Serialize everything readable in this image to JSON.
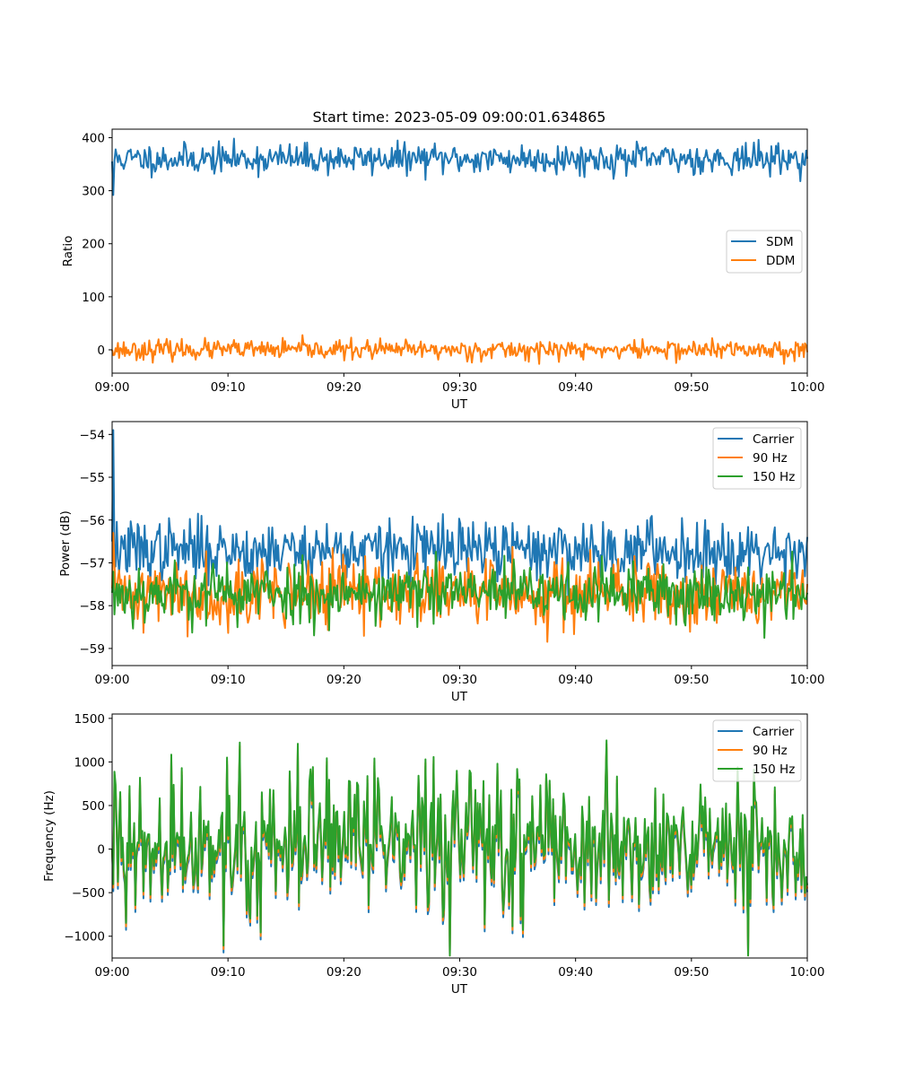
{
  "chart_data": [
    {
      "type": "line",
      "title": "Start time: 2023-05-09 09:00:01.634865",
      "xlabel": "UT",
      "ylabel": "Ratio",
      "x_range": [
        "09:00",
        "10:00"
      ],
      "xticks": [
        "09:00",
        "09:10",
        "09:20",
        "09:30",
        "09:40",
        "09:50",
        "10:00"
      ],
      "ylim": [
        -44,
        416
      ],
      "yticks": [
        0,
        100,
        200,
        300,
        400
      ],
      "legend_position": "center-right",
      "series": [
        {
          "name": "SDM",
          "color": "#1f77b4",
          "mean": 360,
          "noise": 14,
          "start_values": [
            355,
            292
          ],
          "seed": 11
        },
        {
          "name": "DDM",
          "color": "#ff7f0e",
          "mean": 0,
          "noise": 9,
          "start_values": [
            0
          ],
          "seed": 23
        }
      ]
    },
    {
      "type": "line",
      "title": "",
      "xlabel": "UT",
      "ylabel": "Power (dB)",
      "x_range": [
        "09:00",
        "10:00"
      ],
      "xticks": [
        "09:00",
        "09:10",
        "09:20",
        "09:30",
        "09:40",
        "09:50",
        "10:00"
      ],
      "ylim": [
        -59.4,
        -53.7
      ],
      "yticks": [
        -59,
        -58,
        -57,
        -56,
        -55,
        -54
      ],
      "legend_position": "upper-right",
      "series": [
        {
          "name": "Carrier",
          "color": "#1f77b4",
          "mean": -56.7,
          "noise": 0.35,
          "start_values": [
            -56.5,
            -53.9,
            -56.8
          ],
          "seed": 37
        },
        {
          "name": "90 Hz",
          "color": "#ff7f0e",
          "mean": -57.7,
          "noise": 0.4,
          "start_values": [
            -57.6,
            -56.3
          ],
          "seed": 41
        },
        {
          "name": "150 Hz",
          "color": "#2ca02c",
          "mean": -57.7,
          "noise": 0.35,
          "start_values": [
            -57.7
          ],
          "seed": 53
        }
      ]
    },
    {
      "type": "line",
      "title": "",
      "xlabel": "UT",
      "ylabel": "Frequency (Hz)",
      "x_range": [
        "09:00",
        "10:00"
      ],
      "xticks": [
        "09:00",
        "09:10",
        "09:20",
        "09:30",
        "09:40",
        "09:50",
        "10:00"
      ],
      "ylim": [
        -1250,
        1550
      ],
      "yticks": [
        -1000,
        -500,
        0,
        500,
        1000,
        1500
      ],
      "legend_position": "upper-right",
      "series": [
        {
          "name": "Carrier",
          "color": "#1f77b4",
          "mean": -40,
          "noise": 380,
          "start_values": [
            0
          ],
          "seed": 67
        },
        {
          "name": "90 Hz",
          "color": "#ff7f0e",
          "mean": 0,
          "noise": 380,
          "start_values": [
            0
          ],
          "seed": 67
        },
        {
          "name": "150 Hz",
          "color": "#2ca02c",
          "mean": 40,
          "noise": 380,
          "start_values": [
            0
          ],
          "seed": 67
        }
      ]
    }
  ]
}
